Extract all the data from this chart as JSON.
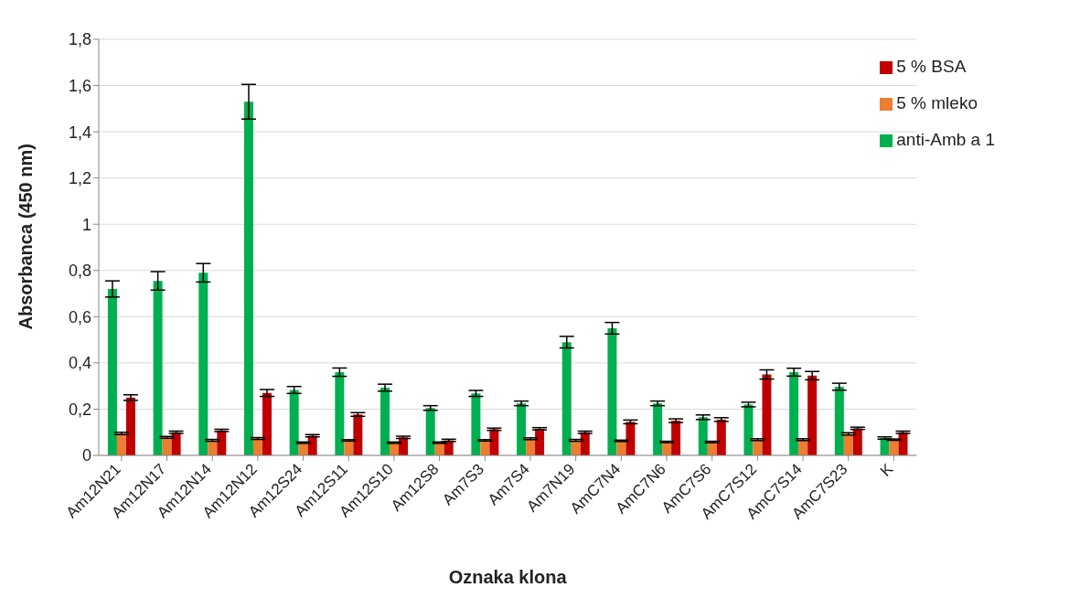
{
  "chart_data": {
    "type": "bar",
    "xlabel": "Oznaka klona",
    "ylabel": "Absorbanca (450 nm)",
    "categories": [
      "Am12N21",
      "Am12N17",
      "Am12N14",
      "Am12N12",
      "Am12S24",
      "Am12S11",
      "Am12S10",
      "Am12S8",
      "Am7S3",
      "Am7S4",
      "Am7N19",
      "AmC7N4",
      "AmC7N6",
      "AmC7S6",
      "AmC7S12",
      "AmC7S14",
      "AmC7S23",
      "K"
    ],
    "series": [
      {
        "name": "anti-Amb a 1",
        "color": "#00b050",
        "values": [
          0.72,
          0.755,
          0.79,
          1.53,
          0.283,
          0.36,
          0.293,
          0.205,
          0.268,
          0.225,
          0.49,
          0.55,
          0.225,
          0.165,
          0.22,
          0.36,
          0.297,
          0.075
        ],
        "errors": [
          0.035,
          0.04,
          0.04,
          0.075,
          0.015,
          0.018,
          0.015,
          0.01,
          0.013,
          0.01,
          0.025,
          0.025,
          0.01,
          0.01,
          0.01,
          0.017,
          0.015,
          0.005
        ]
      },
      {
        "name": "5 % mleko",
        "color": "#ed7d31",
        "values": [
          0.095,
          0.078,
          0.065,
          0.073,
          0.055,
          0.065,
          0.055,
          0.055,
          0.065,
          0.072,
          0.065,
          0.063,
          0.058,
          0.058,
          0.068,
          0.068,
          0.093,
          0.068
        ],
        "errors": [
          0.005,
          0.004,
          0.004,
          0.004,
          0.003,
          0.003,
          0.003,
          0.003,
          0.003,
          0.004,
          0.004,
          0.003,
          0.003,
          0.003,
          0.004,
          0.004,
          0.005,
          0.003
        ]
      },
      {
        "name": "5 % BSA",
        "color": "#c00000",
        "values": [
          0.25,
          0.1,
          0.108,
          0.27,
          0.085,
          0.177,
          0.078,
          0.065,
          0.113,
          0.115,
          0.1,
          0.145,
          0.15,
          0.155,
          0.35,
          0.345,
          0.117,
          0.1
        ],
        "errors": [
          0.012,
          0.005,
          0.005,
          0.015,
          0.005,
          0.008,
          0.005,
          0.005,
          0.005,
          0.005,
          0.005,
          0.008,
          0.008,
          0.008,
          0.02,
          0.018,
          0.005,
          0.005
        ]
      }
    ],
    "ylim": [
      0,
      1.8
    ],
    "yticks": [
      0,
      {
        "value": 0.2,
        "label": "0,2"
      },
      {
        "value": 0.4,
        "label": "0,4"
      },
      {
        "value": 0.6,
        "label": "0,6"
      },
      {
        "value": 0.8,
        "label": "0,8"
      },
      1,
      {
        "value": 1.2,
        "label": "1,2"
      },
      {
        "value": 1.4,
        "label": "1,4"
      },
      {
        "value": 1.6,
        "label": "1,6"
      },
      {
        "value": 1.8,
        "label": "1,8"
      }
    ],
    "grid": "y",
    "legend": "top right"
  }
}
